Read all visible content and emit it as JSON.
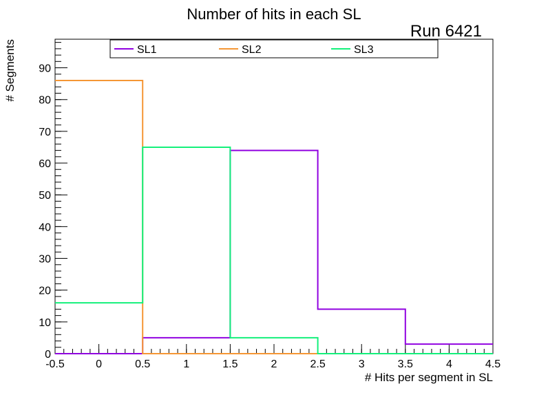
{
  "chart_data": {
    "type": "step-histogram",
    "title": "Number of hits in each SL",
    "annotation": "Run 6421",
    "xlabel": "# Hits per segment in SL",
    "ylabel": "# Segments",
    "xlim": [
      -0.5,
      4.5
    ],
    "ylim": [
      0,
      99
    ],
    "x_ticks": [
      "-0.5",
      "0",
      "0.5",
      "1",
      "1.5",
      "2",
      "2.5",
      "3",
      "3.5",
      "4",
      "4.5"
    ],
    "y_ticks": [
      "0",
      "10",
      "20",
      "30",
      "40",
      "50",
      "60",
      "70",
      "80",
      "90"
    ],
    "bin_edges": [
      -0.5,
      0.5,
      1.5,
      2.5,
      3.5,
      4.5
    ],
    "legend_position": "top",
    "grid": false,
    "series": [
      {
        "name": "SL1",
        "color": "#9000e0",
        "values": [
          0,
          5,
          64,
          14,
          3
        ]
      },
      {
        "name": "SL2",
        "color": "#f59634",
        "values": [
          86,
          0,
          0,
          0,
          0
        ]
      },
      {
        "name": "SL3",
        "color": "#12f07a",
        "values": [
          16,
          65,
          5,
          0,
          0
        ]
      }
    ]
  }
}
